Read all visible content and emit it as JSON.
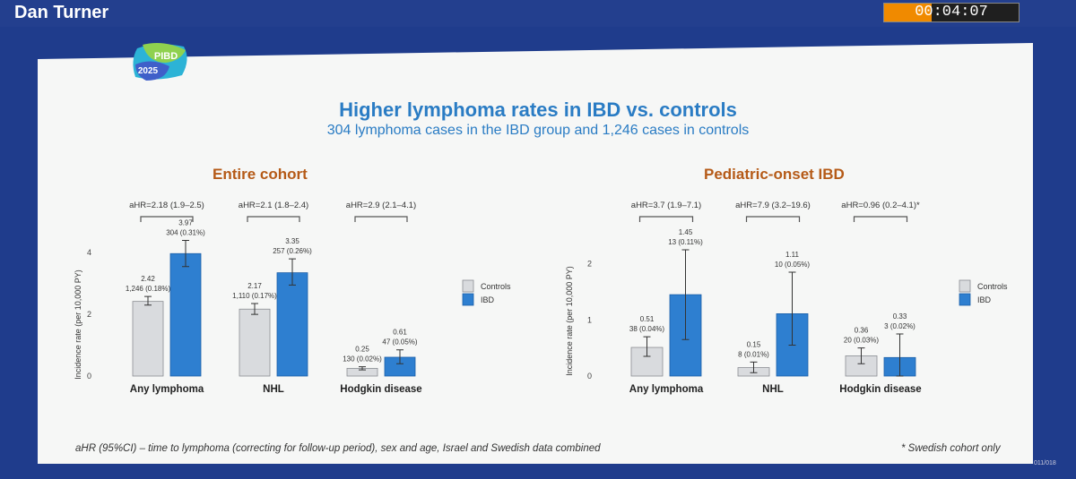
{
  "presenter": "Dan Turner",
  "timer": {
    "time": "00:04:07",
    "progress": 0.35
  },
  "logo": {
    "text": "PIBD",
    "year": "2025"
  },
  "slide": {
    "title": "Higher lymphoma rates in IBD vs. controls",
    "subtitle": "304 lymphoma cases in the IBD group and 1,246 cases in controls",
    "footnote": "aHR (95%CI) – time to lymphoma (correcting for follow-up period), sex and age, Israel and Swedish data combined",
    "footnote_right": "* Swedish cohort only",
    "slide_number": "011/018"
  },
  "colors": {
    "controls": "#d9dbde",
    "ibd": "#2e7fd0",
    "title": "#2a7cc4",
    "section": "#b55a17"
  },
  "chart_data": [
    {
      "type": "bar",
      "title": "Entire cohort",
      "ylabel": "Incidence rate (per 10,000 PY)",
      "ylim": [
        0,
        4.5
      ],
      "yticks": [
        0,
        2,
        4
      ],
      "legend": [
        "Controls",
        "IBD"
      ],
      "categories": [
        "Any lymphoma",
        "NHL",
        "Hodgkin disease"
      ],
      "hr_labels": [
        "aHR=2.18 (1.9–2.5)",
        "aHR=2.1 (1.8–2.4)",
        "aHR=2.9 (2.1–4.1)"
      ],
      "series": [
        {
          "name": "Controls",
          "values": [
            2.42,
            2.17,
            0.25
          ],
          "err_low": [
            2.3,
            2.0,
            0.2
          ],
          "err_high": [
            2.58,
            2.35,
            0.3
          ],
          "value_labels": [
            "2.42",
            "2.17",
            "0.25"
          ],
          "count_labels": [
            "1,246 (0.18%)",
            "1,110 (0.17%)",
            "130 (0.02%)"
          ]
        },
        {
          "name": "IBD",
          "values": [
            3.97,
            3.35,
            0.61
          ],
          "err_low": [
            3.55,
            2.95,
            0.4
          ],
          "err_high": [
            4.4,
            3.8,
            0.85
          ],
          "value_labels": [
            "3.97",
            "3.35",
            "0.61"
          ],
          "count_labels": [
            "304 (0.31%)",
            "257 (0.26%)",
            "47 (0.05%)"
          ]
        }
      ]
    },
    {
      "type": "bar",
      "title": "Pediatric-onset IBD",
      "ylabel": "Incidence rate (per 10,000 PY)",
      "ylim": [
        0,
        2.6
      ],
      "yticks": [
        0,
        1,
        2
      ],
      "legend": [
        "Controls",
        "IBD"
      ],
      "categories": [
        "Any lymphoma",
        "NHL",
        "Hodgkin disease"
      ],
      "hr_labels": [
        "aHR=3.7 (1.9–7.1)",
        "aHR=7.9 (3.2–19.6)",
        "aHR=0.96 (0.2–4.1)*"
      ],
      "series": [
        {
          "name": "Controls",
          "values": [
            0.51,
            0.15,
            0.36
          ],
          "err_low": [
            0.35,
            0.06,
            0.22
          ],
          "err_high": [
            0.7,
            0.25,
            0.5
          ],
          "value_labels": [
            "0.51",
            "0.15",
            "0.36"
          ],
          "count_labels": [
            "38 (0.04%)",
            "8 (0.01%)",
            "20 (0.03%)"
          ]
        },
        {
          "name": "IBD",
          "values": [
            1.45,
            1.11,
            0.33
          ],
          "err_low": [
            0.65,
            0.55,
            0.0
          ],
          "err_high": [
            2.25,
            1.85,
            0.75
          ],
          "value_labels": [
            "1.45",
            "1.11",
            "0.33"
          ],
          "count_labels": [
            "13 (0.11%)",
            "10 (0.05%)",
            "3 (0.02%)"
          ]
        }
      ]
    }
  ]
}
